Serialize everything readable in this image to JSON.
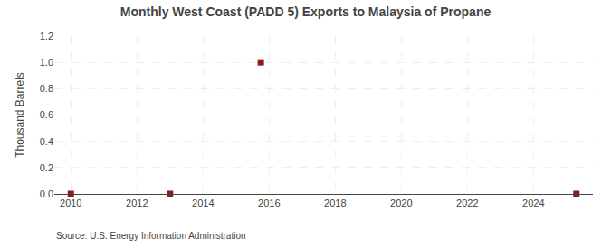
{
  "chart_data": {
    "type": "scatter",
    "title": "Monthly West Coast (PADD 5) Exports to Malaysia of Propane",
    "ylabel": "Thousand Barrels",
    "annotation": "Source: U.S. Energy Information Administration",
    "x": [
      2010.0,
      2013.0,
      2015.75,
      2025.3
    ],
    "values": [
      0.0,
      0.0,
      1.0,
      0.0
    ],
    "color": "#8b1a1a",
    "marker": "square",
    "xlim": [
      2009.5,
      2025.8
    ],
    "ylim": [
      0.0,
      1.2
    ],
    "xticks": [
      2010,
      2012,
      2014,
      2016,
      2018,
      2020,
      2022,
      2024
    ],
    "yticks": [
      {
        "value": 0.0,
        "label": "0.0"
      },
      0.2,
      0.4,
      0.6,
      0.8,
      {
        "value": 1.0,
        "label": "1.0"
      },
      1.2
    ],
    "grid": true
  }
}
